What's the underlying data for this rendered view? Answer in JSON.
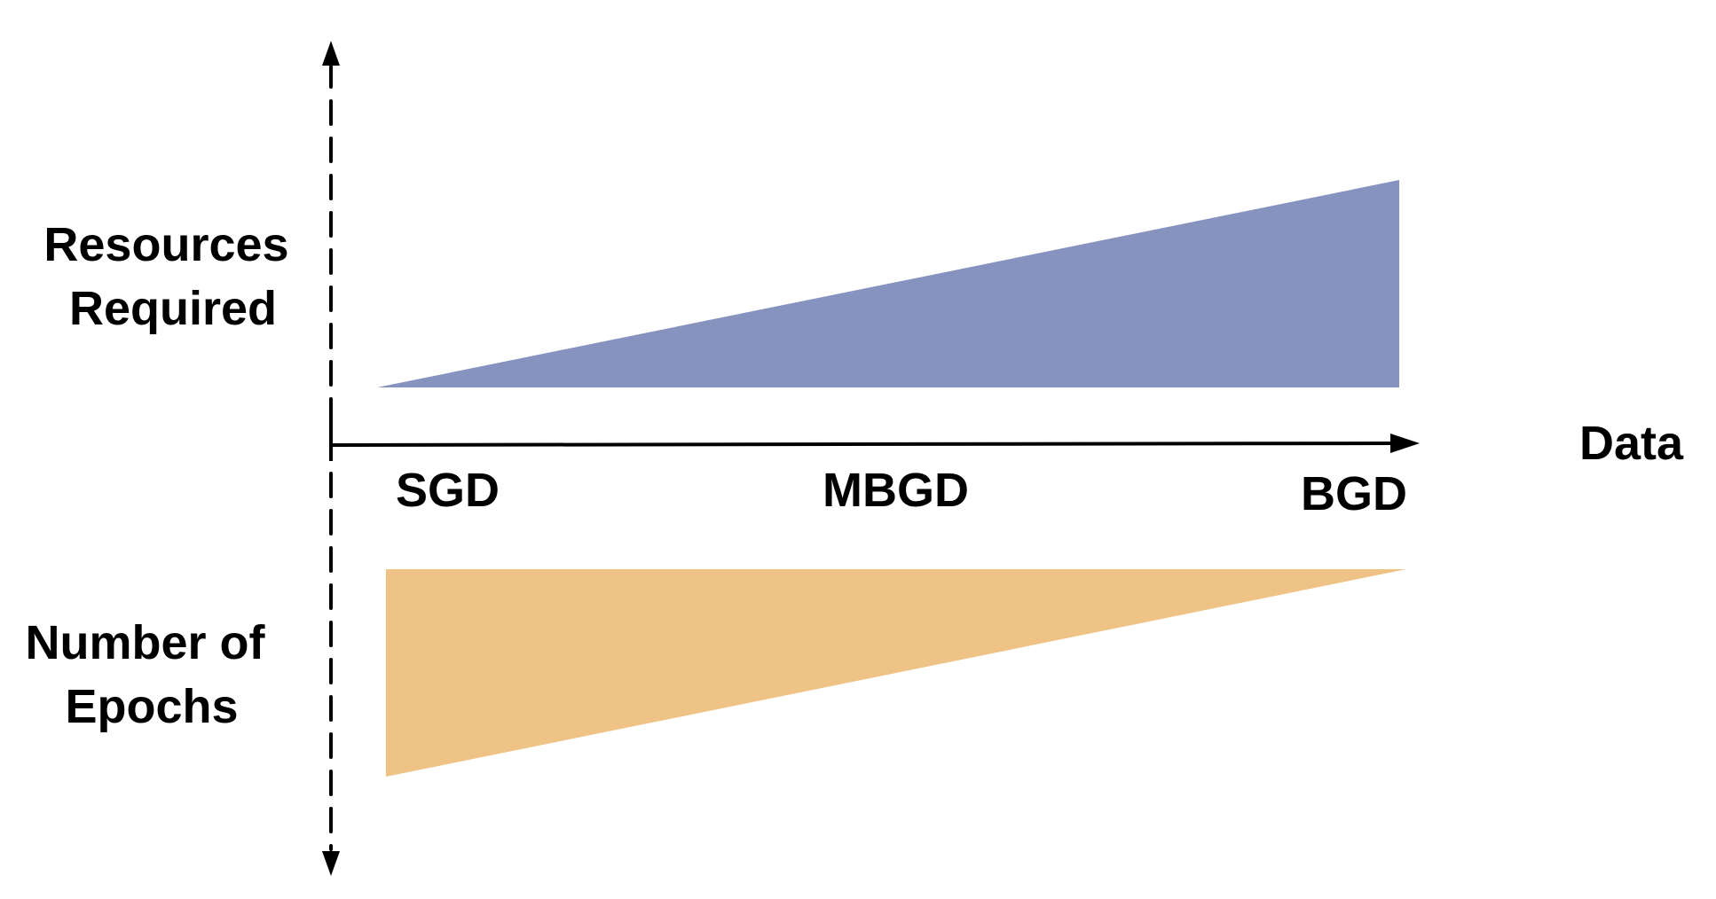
{
  "labels": {
    "resources_line1": "Resources",
    "resources_line2": "Required",
    "epochs_line1": "Number of",
    "epochs_line2": "Epochs",
    "data_axis": "Data",
    "sgd": "SGD",
    "mbgd": "MBGD",
    "bgd": "BGD"
  },
  "colors": {
    "resources_wedge": "#8793bf",
    "epochs_wedge": "#efc386",
    "axis": "#000000"
  },
  "trends": {
    "resources_required": "increases from SGD to BGD",
    "number_of_epochs": "decreases from SGD to BGD"
  }
}
